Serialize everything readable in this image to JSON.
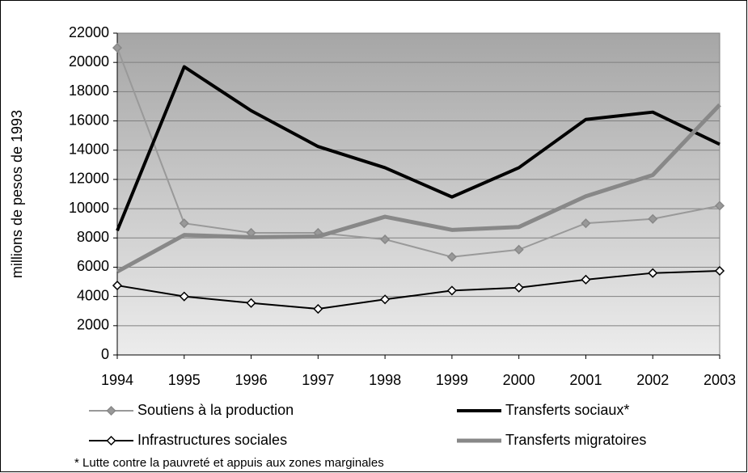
{
  "chart_data": {
    "type": "line",
    "y_label": "millions de pesos de 1993",
    "note": "* Lutte contre la pauvreté et appuis aux zones marginales",
    "categories": [
      "1994",
      "1995",
      "1996",
      "1997",
      "1998",
      "1999",
      "2000",
      "2001",
      "2002",
      "2003"
    ],
    "ylim": [
      0,
      22000
    ],
    "yticks": [
      0,
      2000,
      4000,
      6000,
      8000,
      10000,
      12000,
      14000,
      16000,
      18000,
      20000,
      22000
    ],
    "grid": true,
    "series": [
      {
        "name": "Soutiens à la production",
        "color": "#999999",
        "width": 2,
        "marker": "diamond",
        "marker_fill": "#999999",
        "values": [
          21000,
          9000,
          8350,
          8350,
          7900,
          6700,
          7200,
          9000,
          9300,
          10200
        ]
      },
      {
        "name": "Transferts sociaux*",
        "color": "#000000",
        "width": 4,
        "values": [
          8500,
          19700,
          16700,
          14250,
          12800,
          10800,
          12800,
          16100,
          16600,
          14400
        ]
      },
      {
        "name": "Infrastructures sociales",
        "color": "#000000",
        "width": 2,
        "marker": "diamond",
        "marker_fill": "#ffffff",
        "values": [
          4750,
          4000,
          3550,
          3150,
          3800,
          4400,
          4600,
          5150,
          5600,
          5750
        ]
      },
      {
        "name": "Transferts migratoires",
        "color": "#888888",
        "width": 5,
        "values": [
          5700,
          8200,
          8050,
          8100,
          9450,
          8550,
          8750,
          10850,
          12300,
          17100
        ]
      }
    ]
  }
}
